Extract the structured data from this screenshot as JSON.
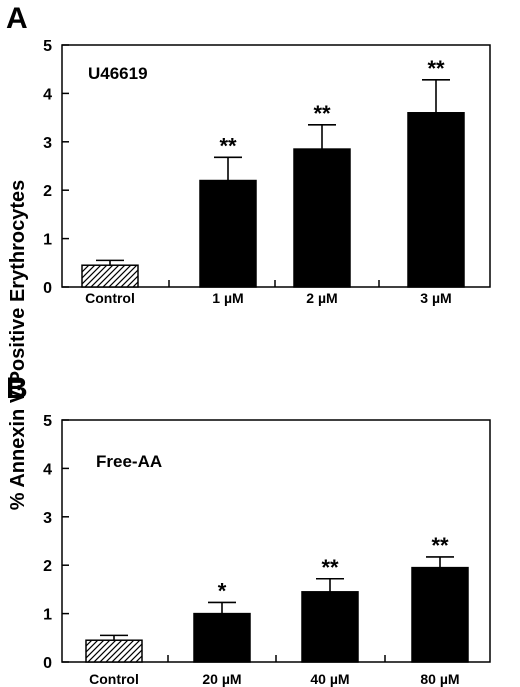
{
  "figure": {
    "ylabel": "% Annexin V-Positive Erythrocytes"
  },
  "chart_data": [
    {
      "type": "bar",
      "panel": "A",
      "inset_label": "U46619",
      "categories": [
        "Control",
        "1 µM",
        "2 µM",
        "3 µM"
      ],
      "values": [
        0.45,
        2.2,
        2.85,
        3.6
      ],
      "errors": [
        0.1,
        0.48,
        0.5,
        0.68
      ],
      "significance": [
        "",
        "**",
        "**",
        "**"
      ],
      "bar_styles": [
        "hatched",
        "solid",
        "solid",
        "solid"
      ],
      "ylim": [
        0,
        5
      ],
      "yticks": [
        "0",
        "1",
        "2",
        "3",
        "4",
        "5"
      ]
    },
    {
      "type": "bar",
      "panel": "B",
      "inset_label": "Free-AA",
      "categories": [
        "Control",
        "20 µM",
        "40 µM",
        "80 µM"
      ],
      "values": [
        0.45,
        1.0,
        1.45,
        1.95
      ],
      "errors": [
        0.1,
        0.23,
        0.27,
        0.22
      ],
      "significance": [
        "",
        "*",
        "**",
        "**"
      ],
      "bar_styles": [
        "hatched",
        "solid",
        "solid",
        "solid"
      ],
      "ylim": [
        0,
        5
      ],
      "yticks": [
        "0",
        "1",
        "2",
        "3",
        "4",
        "5"
      ]
    }
  ]
}
